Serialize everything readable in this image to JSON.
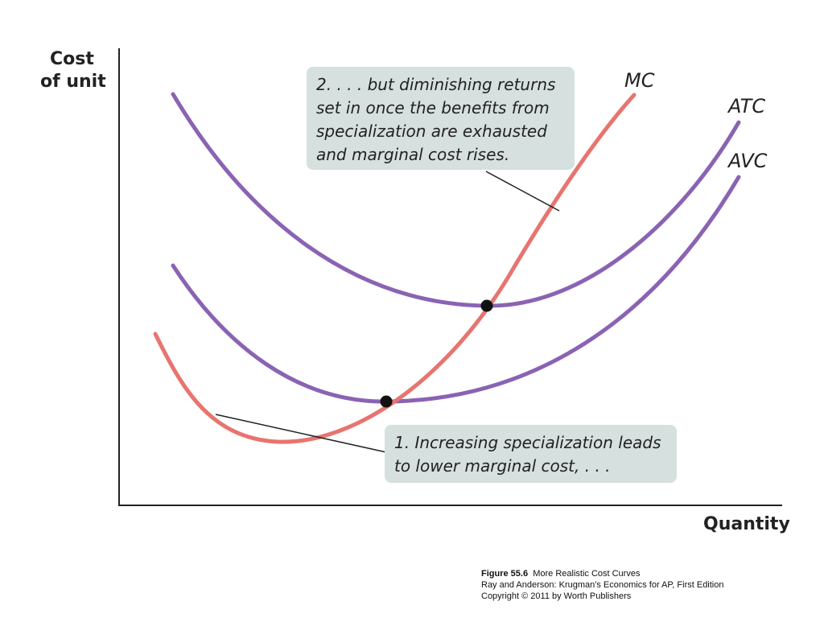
{
  "chart_data": {
    "type": "line",
    "xlabel": "Quantity",
    "ylabel": [
      "Cost",
      "of unit"
    ],
    "grid": false,
    "series": [
      {
        "name": "MC",
        "color": "#e8746f"
      },
      {
        "name": "ATC",
        "color": "#8a63b3"
      },
      {
        "name": "AVC",
        "color": "#8a63b3"
      }
    ],
    "annotations": [
      {
        "lines": [
          "2. . . . but diminishing returns",
          "set in once the benefits from",
          "specialization are exhausted",
          "and marginal cost rises."
        ]
      },
      {
        "lines": [
          "1. Increasing specialization leads",
          "to lower marginal cost, . . ."
        ]
      }
    ],
    "annotation_bg": "#d6e0de"
  },
  "caption": {
    "figure": "Figure 55.6",
    "title": "More Realistic Cost Curves",
    "line2": "Ray and Anderson: Krugman's Economics for AP, First Edition",
    "line3": "Copyright © 2011 by Worth Publishers"
  }
}
